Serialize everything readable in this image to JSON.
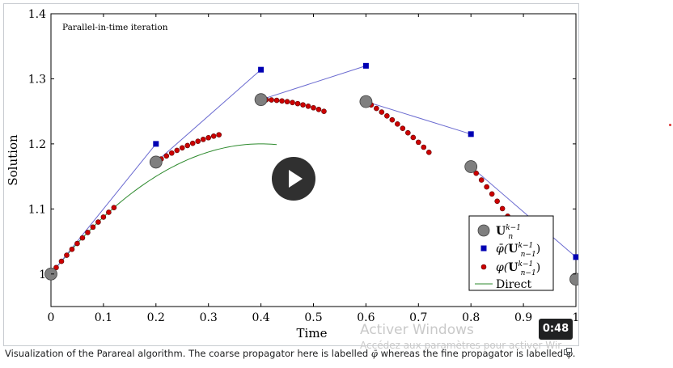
{
  "chart_data": {
    "type": "scatter",
    "title": "",
    "annotation": "Parallel-in-time iteration",
    "xlabel": "Time",
    "ylabel": "Solution",
    "xlim": [
      0,
      1
    ],
    "ylim": [
      0.95,
      1.4
    ],
    "xticks": [
      0,
      0.1,
      0.2,
      0.3,
      0.4,
      0.5,
      0.6,
      0.7,
      0.8,
      0.9,
      1
    ],
    "xtick_labels": [
      "0",
      "0.1",
      "0.2",
      "0.3",
      "0.4",
      "0.5",
      "0.6",
      "0.7",
      "0.8",
      "0.9",
      "1"
    ],
    "yticks": [
      1,
      1.1,
      1.2,
      1.3,
      1.4
    ],
    "ytick_labels": [
      "1",
      "1.1",
      "1.2",
      "1.3",
      "1.4"
    ],
    "grid": false,
    "legend_position": "bottom-right",
    "legend": [
      {
        "key": "U",
        "label_main": "U",
        "label_sup": "k−1",
        "label_sub": "n"
      },
      {
        "key": "coarse",
        "label_prefix": "φ̄(",
        "label_main": "U",
        "label_sup": "k−1",
        "label_sub": "n−1",
        "label_suffix": ")"
      },
      {
        "key": "fine",
        "label_prefix": "φ(",
        "label_main": "U",
        "label_sup": "k−1",
        "label_sub": "n−1",
        "label_suffix": ")"
      },
      {
        "key": "direct",
        "label": "Direct"
      }
    ],
    "series": [
      {
        "key": "U",
        "marker": "large-circle",
        "points": [
          [
            0,
            1.0
          ],
          [
            0.2,
            1.172
          ],
          [
            0.4,
            1.268
          ],
          [
            0.6,
            1.265
          ],
          [
            0.8,
            1.165
          ],
          [
            1.0,
            0.992
          ]
        ]
      },
      {
        "key": "coarse",
        "marker": "square",
        "segments": [
          [
            [
              0,
              1.0
            ],
            [
              0.2,
              1.2
            ]
          ],
          [
            [
              0.2,
              1.172
            ],
            [
              0.4,
              1.314
            ]
          ],
          [
            [
              0.4,
              1.268
            ],
            [
              0.6,
              1.32
            ]
          ],
          [
            [
              0.6,
              1.265
            ],
            [
              0.8,
              1.215
            ]
          ],
          [
            [
              0.8,
              1.165
            ],
            [
              1.0,
              1.026
            ]
          ]
        ]
      },
      {
        "key": "fine",
        "marker": "small-circle",
        "segments": [
          {
            "t0": 0,
            "u0": 1.0,
            "t1": 0.12
          },
          {
            "t0": 0.2,
            "u0": 1.172,
            "t1": 0.32
          },
          {
            "t0": 0.4,
            "u0": 1.268,
            "t1": 0.52
          },
          {
            "t0": 0.6,
            "u0": 1.265,
            "t1": 0.72
          },
          {
            "t0": 0.8,
            "u0": 1.165,
            "t1": 0.92
          }
        ],
        "dt": 0.01
      },
      {
        "key": "direct",
        "marker": "none",
        "range": [
          0,
          0.43
        ],
        "u0": 1.0
      }
    ],
    "colors": {
      "U_fill": "#7f7f7f",
      "U_stroke": "#404040",
      "coarse": "#0000b3",
      "coarse_line": "#6a6ad0",
      "fine_fill": "#cc0000",
      "fine_stroke": "#5a0000",
      "direct": "#2d8a2d"
    }
  },
  "caption": {
    "before": "Visualization of the Parareal algorithm. The coarse propagator here is labelled ",
    "coarse_symbol": "φ̄",
    "middle": " whereas the fine propagator is labelled ",
    "fine_symbol": "φ",
    "after": "."
  },
  "video": {
    "timer": "0:48"
  },
  "overlay": {
    "watermark_line1": "Activer Windows",
    "watermark_line2": "Accédez aux paramètres pour activer Wir"
  }
}
